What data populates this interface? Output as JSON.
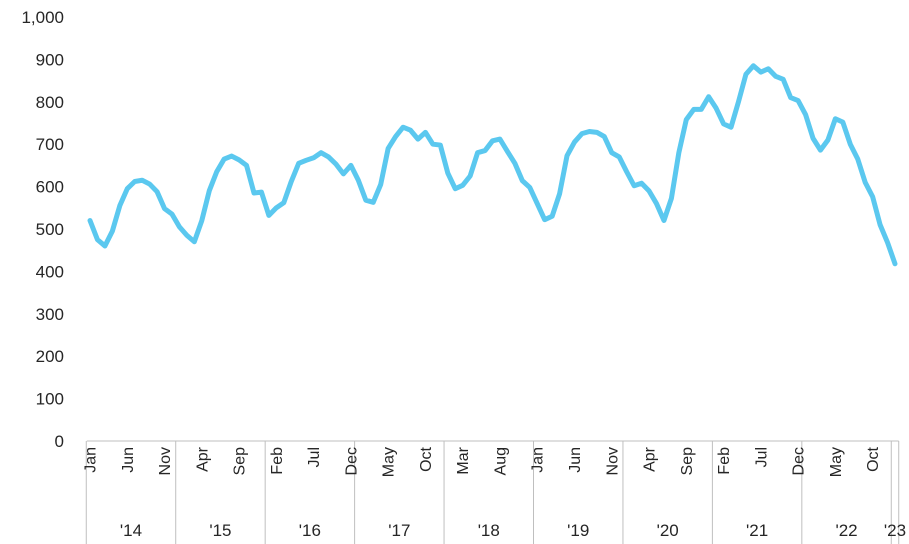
{
  "chart_data": {
    "type": "line",
    "title": "",
    "xlabel": "",
    "ylabel": "",
    "ylim": [
      0,
      1000
    ],
    "yticks": [
      "0",
      "100",
      "200",
      "300",
      "400",
      "500",
      "600",
      "700",
      "800",
      "900",
      "1,000"
    ],
    "grid": false,
    "legend": "none",
    "series_color": "#5bc8ef",
    "start_month": "2014-01",
    "month_tick_labels": [
      "Jan",
      "Jun",
      "Nov",
      "Apr",
      "Sep",
      "Feb",
      "Jul",
      "Dec",
      "May",
      "Oct",
      "Mar",
      "Aug",
      "Jan",
      "Jun",
      "Nov",
      "Apr",
      "Sep",
      "Feb",
      "Jul",
      "Dec",
      "May",
      "Oct"
    ],
    "years": [
      "'14",
      "'15",
      "'16",
      "'17",
      "'18",
      "'19",
      "'20",
      "'21",
      "'22",
      "'23"
    ],
    "series": [
      {
        "values": [
          520,
          475,
          460,
          495,
          555,
          595,
          612,
          615,
          606,
          588,
          548,
          535,
          505,
          485,
          470,
          520,
          590,
          635,
          665,
          672,
          663,
          650,
          585,
          587,
          532,
          550,
          562,
          612,
          655,
          662,
          668,
          680,
          670,
          653,
          630,
          650,
          615,
          568,
          563,
          605,
          690,
          718,
          740,
          733,
          712,
          728,
          700,
          698,
          632,
          595,
          603,
          625,
          680,
          685,
          708,
          712,
          683,
          655,
          614,
          598,
          560,
          522,
          530,
          583,
          673,
          705,
          725,
          730,
          728,
          718,
          680,
          670,
          635,
          602,
          608,
          590,
          560,
          520,
          572,
          680,
          758,
          782,
          782,
          812,
          785,
          748,
          740,
          800,
          865,
          885,
          870,
          878,
          860,
          853,
          810,
          803,
          770,
          714,
          686,
          710,
          760,
          752,
          700,
          665,
          610,
          576,
          510,
          468,
          418
        ]
      }
    ]
  }
}
